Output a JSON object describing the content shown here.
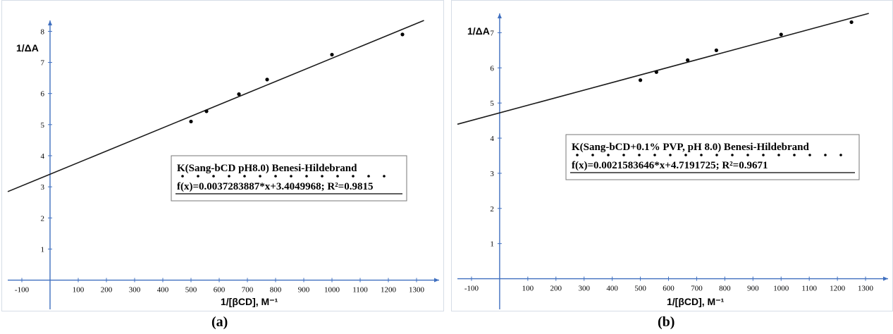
{
  "captions": {
    "a": "(a)",
    "b": "(b)"
  },
  "chart_data": [
    {
      "type": "scatter",
      "title": "",
      "ylabel": "1/ΔA",
      "xlabel": "1/[βCD], M⁻¹",
      "xlim": [
        -150,
        1380
      ],
      "ylim": [
        -0.35,
        8.35
      ],
      "xticks": [
        -100,
        100,
        200,
        300,
        400,
        500,
        600,
        700,
        800,
        900,
        1000,
        1100,
        1200,
        1300
      ],
      "yticks": [
        1,
        2,
        3,
        4,
        5,
        6,
        7,
        8
      ],
      "points": {
        "x": [
          500,
          555,
          670,
          770,
          1000,
          1250
        ],
        "y": [
          5.1,
          5.43,
          5.98,
          6.45,
          7.25,
          7.9
        ]
      },
      "fit": {
        "slope": 0.0037283887,
        "intercept": 3.4049968
      },
      "legend": {
        "line1": "K(Sang-bCD pH8.0) Benesi-Hildebrand",
        "line2": "f(x)=0.0037283887*x+3.4049968; R²=0.9815"
      },
      "grid": false,
      "colors": {
        "line": "#1a1a1a",
        "axis": "#3f6fbf",
        "points": "#000000"
      }
    },
    {
      "type": "scatter",
      "title": "",
      "ylabel": "1/ΔA",
      "xlabel": "1/[βCD], M⁻¹",
      "xlim": [
        -150,
        1380
      ],
      "ylim": [
        -0.35,
        7.55
      ],
      "xticks": [
        -100,
        100,
        200,
        300,
        400,
        500,
        600,
        700,
        800,
        900,
        1000,
        1100,
        1200,
        1300
      ],
      "yticks": [
        1,
        2,
        3,
        4,
        5,
        6,
        7
      ],
      "points": {
        "x": [
          500,
          557,
          668,
          770,
          1000,
          1250
        ],
        "y": [
          5.65,
          5.88,
          6.22,
          6.5,
          6.95,
          7.3
        ]
      },
      "fit": {
        "slope": 0.0021583646,
        "intercept": 4.7191725
      },
      "legend": {
        "line1": "K(Sang-bCD+0.1% PVP, pH 8.0) Benesi-Hildebrand",
        "line2": "f(x)=0.0021583646*x+4.7191725; R²=0.9671"
      },
      "grid": false,
      "colors": {
        "line": "#1a1a1a",
        "axis": "#3f6fbf",
        "points": "#000000"
      }
    }
  ]
}
